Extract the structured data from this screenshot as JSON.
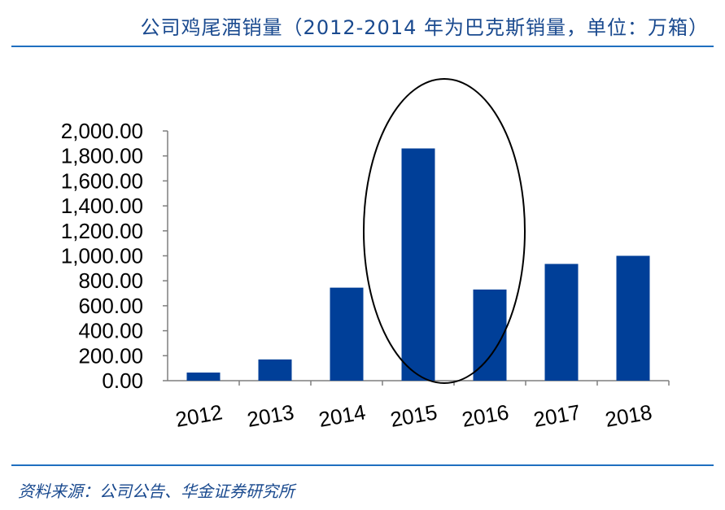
{
  "header": {
    "title": "公司鸡尾酒销量（2012-2014 年为巴克斯销量，单位：万箱）"
  },
  "footer": {
    "source": "资料来源：公司公告、华金证券研究所"
  },
  "colors": {
    "bar": "#003f98",
    "rule": "#1f6fc0",
    "text_accent": "#1a4a8f",
    "highlight_ellipse": "#000000"
  },
  "chart_data": {
    "type": "bar",
    "title": "公司鸡尾酒销量（2012-2014 年为巴克斯销量，单位：万箱）",
    "categories": [
      "2012",
      "2013",
      "2014",
      "2015",
      "2016",
      "2017",
      "2018"
    ],
    "values": [
      65,
      170,
      745,
      1860,
      730,
      935,
      1000
    ],
    "ylim": [
      0,
      2000
    ],
    "yticks": [
      0,
      200,
      400,
      600,
      800,
      1000,
      1200,
      1400,
      1600,
      1800,
      2000
    ],
    "ytick_labels": [
      "0.00",
      "200.00",
      "400.00",
      "600.00",
      "800.00",
      "1,000.00",
      "1,200.00",
      "1,400.00",
      "1,600.00",
      "1,800.00",
      "2,000.00"
    ],
    "xlabel": "",
    "ylabel": "",
    "grid": false,
    "legend": "none",
    "annotation": {
      "type": "ellipse",
      "highlights": "2015"
    }
  }
}
